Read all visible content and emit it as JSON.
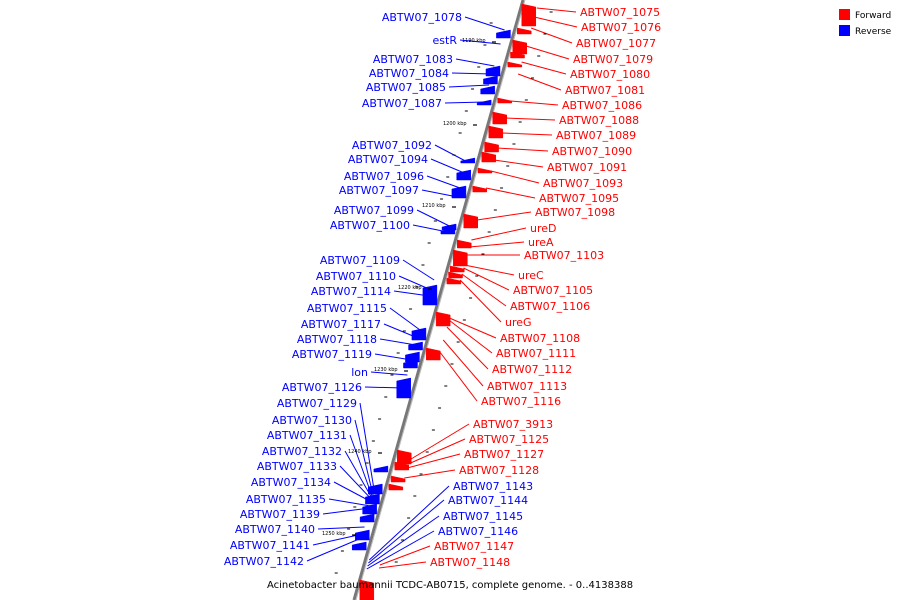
{
  "caption": "Acinetobacter baumannii TCDC-AB0715, complete genome. - 0..4138388",
  "legend": [
    {
      "label": "Forward",
      "color": "#ff0000"
    },
    {
      "label": "Reverse",
      "color": "#0000ff"
    }
  ],
  "kbp_ticks": [
    "1190 kbp",
    "1200 kbp",
    "1210 kbp",
    "1220 kbp",
    "1230 kbp",
    "1240 kbp",
    "1250 kbp"
  ],
  "forward_labels": [
    "ABTW07_1075",
    "ABTW07_1076",
    "ABTW07_1077",
    "ABTW07_1079",
    "ABTW07_1080",
    "ABTW07_1081",
    "ABTW07_1086",
    "ABTW07_1088",
    "ABTW07_1089",
    "ABTW07_1090",
    "ABTW07_1091",
    "ABTW07_1093",
    "ABTW07_1095",
    "ABTW07_1098",
    "ureD",
    "ureA",
    "ABTW07_1103",
    "ureC",
    "ABTW07_1105",
    "ABTW07_1106",
    "ureG",
    "ABTW07_1108",
    "ABTW07_1111",
    "ABTW07_1112",
    "ABTW07_1113",
    "ABTW07_1116",
    "ABTW07_3913",
    "ABTW07_1125",
    "ABTW07_1127",
    "ABTW07_1128",
    "ABTW07_1147",
    "ABTW07_1148"
  ],
  "reverse_left_labels": [
    "ABTW07_1078",
    "estR",
    "ABTW07_1083",
    "ABTW07_1084",
    "ABTW07_1085",
    "ABTW07_1087",
    "ABTW07_1092",
    "ABTW07_1094",
    "ABTW07_1096",
    "ABTW07_1097",
    "ABTW07_1099",
    "ABTW07_1100",
    "ABTW07_1109",
    "ABTW07_1110",
    "ABTW07_1114",
    "ABTW07_1115",
    "ABTW07_1117",
    "ABTW07_1118",
    "ABTW07_1119",
    "lon",
    "ABTW07_1126",
    "ABTW07_1129",
    "ABTW07_1130",
    "ABTW07_1131",
    "ABTW07_1132",
    "ABTW07_1133",
    "ABTW07_1134",
    "ABTW07_1135",
    "ABTW07_1139",
    "ABTW07_1140",
    "ABTW07_1141",
    "ABTW07_1142"
  ],
  "reverse_right_labels": [
    "ABTW07_1143",
    "ABTW07_1144",
    "ABTW07_1145",
    "ABTW07_1146"
  ]
}
